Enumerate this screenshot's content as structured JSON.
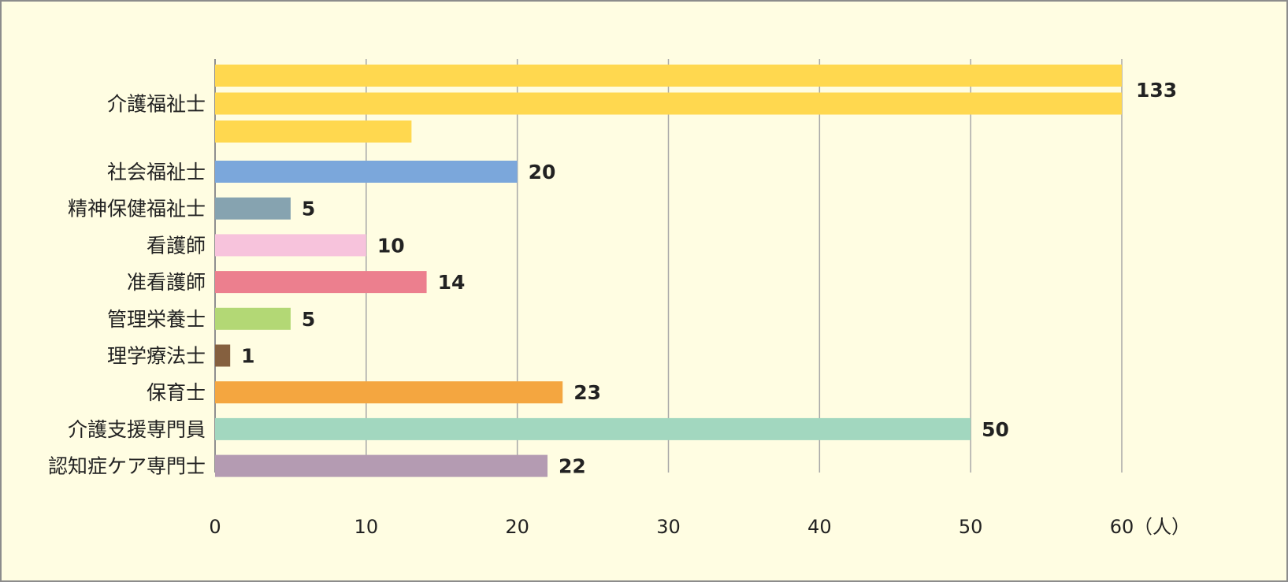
{
  "chart_data": {
    "type": "bar",
    "orientation": "horizontal",
    "categories": [
      "介護福祉士",
      "社会福祉士",
      "精神保健福祉士",
      "看護師",
      "准看護師",
      "管理栄養士",
      "理学療法士",
      "保育士",
      "介護支援専門員",
      "認知症ケア専門士"
    ],
    "values": [
      133,
      20,
      5,
      10,
      14,
      5,
      1,
      23,
      50,
      22
    ],
    "value_labels": [
      "133",
      "20",
      "5",
      "10",
      "14",
      "5",
      "1",
      "23",
      "50",
      "22"
    ],
    "colors": [
      "#ffd84f",
      "#7ba7db",
      "#86a3b0",
      "#f7c3dc",
      "#ec7f8e",
      "#b3d875",
      "#85603f",
      "#f4a640",
      "#a2d7bf",
      "#b49bb2"
    ],
    "xlim": [
      0,
      60
    ],
    "xticks": [
      0,
      10,
      20,
      30,
      40,
      50,
      60
    ],
    "xtick_labels": [
      "0",
      "10",
      "20",
      "30",
      "40",
      "50",
      "60"
    ],
    "unit": "（人）",
    "title": "",
    "xlabel": "",
    "ylabel": "",
    "grid": "vertical",
    "legend": "none",
    "note": ""
  }
}
